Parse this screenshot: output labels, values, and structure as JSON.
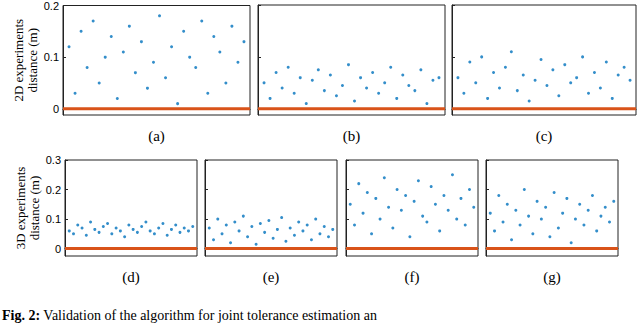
{
  "caption": {
    "label": "Fig. 2:",
    "text": "Validation of the algorithm for joint tolerance estimation an"
  },
  "chart_data": [
    {
      "type": "scatter",
      "title": "(a)",
      "y_label": "2D experiments\ndistance (m)",
      "xlim": [
        0,
        31
      ],
      "ylim": [
        -0.012,
        0.2
      ],
      "yticks": [
        0,
        0.1,
        0.2
      ],
      "tick_labels": "y",
      "grid": false,
      "series": [
        {
          "type": "scatter",
          "color": "#0072bd",
          "marker": "circle",
          "x": [
            1,
            2,
            3,
            4,
            5,
            6,
            7,
            8,
            9,
            10,
            11,
            12,
            13,
            14,
            15,
            16,
            17,
            18,
            19,
            20,
            21,
            22,
            23,
            24,
            25,
            26,
            27,
            28,
            29,
            30
          ],
          "values": [
            0.12,
            0.03,
            0.15,
            0.08,
            0.17,
            0.05,
            0.1,
            0.14,
            0.02,
            0.11,
            0.16,
            0.07,
            0.13,
            0.04,
            0.09,
            0.18,
            0.06,
            0.12,
            0.01,
            0.15,
            0.1,
            0.08,
            0.17,
            0.03,
            0.14,
            0.11,
            0.05,
            0.16,
            0.09,
            0.13
          ]
        },
        {
          "type": "line",
          "color": "#d95319",
          "line_style": "solid",
          "x": [
            0,
            31
          ],
          "values": [
            0,
            0
          ]
        }
      ]
    },
    {
      "type": "scatter",
      "title": "(b)",
      "xlim": [
        0,
        31
      ],
      "ylim": [
        -0.012,
        0.2
      ],
      "yticks": [
        0,
        0.1,
        0.2
      ],
      "tick_labels": false,
      "grid": false,
      "series": [
        {
          "type": "scatter",
          "color": "#0072bd",
          "marker": "circle",
          "x": [
            1,
            2,
            3,
            4,
            5,
            6,
            7,
            8,
            9,
            10,
            11,
            12,
            13,
            14,
            15,
            16,
            17,
            18,
            19,
            20,
            21,
            22,
            23,
            24,
            25,
            26,
            27,
            28,
            29,
            30
          ],
          "values": [
            0.05,
            0.02,
            0.07,
            0.04,
            0.08,
            0.03,
            0.06,
            0.01,
            0.055,
            0.075,
            0.035,
            0.065,
            0.025,
            0.045,
            0.085,
            0.015,
            0.06,
            0.04,
            0.07,
            0.03,
            0.05,
            0.08,
            0.02,
            0.065,
            0.045,
            0.035,
            0.075,
            0.01,
            0.055,
            0.06
          ]
        },
        {
          "type": "line",
          "color": "#d95319",
          "line_style": "solid",
          "x": [
            0,
            31
          ],
          "values": [
            0,
            0
          ]
        }
      ]
    },
    {
      "type": "scatter",
      "title": "(c)",
      "xlim": [
        0,
        31
      ],
      "ylim": [
        -0.012,
        0.2
      ],
      "yticks": [
        0,
        0.1,
        0.2
      ],
      "tick_labels": false,
      "grid": false,
      "series": [
        {
          "type": "scatter",
          "color": "#0072bd",
          "marker": "circle",
          "x": [
            1,
            2,
            3,
            4,
            5,
            6,
            7,
            8,
            9,
            10,
            11,
            12,
            13,
            14,
            15,
            16,
            17,
            18,
            19,
            20,
            21,
            22,
            23,
            24,
            25,
            26,
            27,
            28,
            29,
            30
          ],
          "values": [
            0.06,
            0.03,
            0.09,
            0.05,
            0.1,
            0.02,
            0.07,
            0.04,
            0.08,
            0.11,
            0.035,
            0.065,
            0.015,
            0.055,
            0.095,
            0.045,
            0.075,
            0.025,
            0.085,
            0.05,
            0.06,
            0.1,
            0.03,
            0.07,
            0.04,
            0.09,
            0.02,
            0.065,
            0.08,
            0.055
          ]
        },
        {
          "type": "line",
          "color": "#d95319",
          "line_style": "solid",
          "x": [
            0,
            31
          ],
          "values": [
            0,
            0
          ]
        }
      ]
    },
    {
      "type": "scatter",
      "title": "(d)",
      "y_label": "3D experiments\ndistance (m)",
      "xlim": [
        0,
        31
      ],
      "ylim": [
        -0.025,
        0.3
      ],
      "yticks": [
        0,
        0.1,
        0.2,
        0.3
      ],
      "tick_labels": "y",
      "grid": false,
      "series": [
        {
          "type": "scatter",
          "color": "#0072bd",
          "marker": "circle",
          "x": [
            1,
            2,
            3,
            4,
            5,
            6,
            7,
            8,
            9,
            10,
            11,
            12,
            13,
            14,
            15,
            16,
            17,
            18,
            19,
            20,
            21,
            22,
            23,
            24,
            25,
            26,
            27,
            28,
            29,
            30
          ],
          "values": [
            0.06,
            0.05,
            0.08,
            0.07,
            0.045,
            0.09,
            0.065,
            0.055,
            0.075,
            0.085,
            0.05,
            0.07,
            0.06,
            0.04,
            0.08,
            0.065,
            0.055,
            0.075,
            0.09,
            0.06,
            0.05,
            0.07,
            0.085,
            0.045,
            0.065,
            0.08,
            0.055,
            0.07,
            0.06,
            0.075
          ]
        },
        {
          "type": "line",
          "color": "#d95319",
          "line_style": "solid",
          "x": [
            0,
            31
          ],
          "values": [
            0,
            0
          ]
        }
      ]
    },
    {
      "type": "scatter",
      "title": "(e)",
      "xlim": [
        0,
        31
      ],
      "ylim": [
        -0.025,
        0.3
      ],
      "yticks": [
        0,
        0.1,
        0.2,
        0.3
      ],
      "tick_labels": false,
      "grid": false,
      "series": [
        {
          "type": "scatter",
          "color": "#0072bd",
          "marker": "circle",
          "x": [
            1,
            2,
            3,
            4,
            5,
            6,
            7,
            8,
            9,
            10,
            11,
            12,
            13,
            14,
            15,
            16,
            17,
            18,
            19,
            20,
            21,
            22,
            23,
            24,
            25,
            26,
            27,
            28,
            29,
            30
          ],
          "values": [
            0.07,
            0.03,
            0.1,
            0.05,
            0.08,
            0.02,
            0.09,
            0.06,
            0.11,
            0.04,
            0.075,
            0.015,
            0.085,
            0.055,
            0.095,
            0.035,
            0.065,
            0.105,
            0.025,
            0.07,
            0.045,
            0.09,
            0.06,
            0.08,
            0.03,
            0.1,
            0.05,
            0.075,
            0.04,
            0.065
          ]
        },
        {
          "type": "line",
          "color": "#d95319",
          "line_style": "solid",
          "x": [
            0,
            31
          ],
          "values": [
            0,
            0
          ]
        }
      ]
    },
    {
      "type": "scatter",
      "title": "(f)",
      "xlim": [
        0,
        31
      ],
      "ylim": [
        -0.025,
        0.3
      ],
      "yticks": [
        0,
        0.1,
        0.2,
        0.3
      ],
      "tick_labels": false,
      "grid": false,
      "series": [
        {
          "type": "scatter",
          "color": "#0072bd",
          "marker": "circle",
          "x": [
            1,
            2,
            3,
            4,
            5,
            6,
            7,
            8,
            9,
            10,
            11,
            12,
            13,
            14,
            15,
            16,
            17,
            18,
            19,
            20,
            21,
            22,
            23,
            24,
            25,
            26,
            27,
            28,
            29,
            30
          ],
          "values": [
            0.15,
            0.08,
            0.22,
            0.12,
            0.19,
            0.05,
            0.17,
            0.1,
            0.24,
            0.14,
            0.07,
            0.2,
            0.13,
            0.18,
            0.04,
            0.16,
            0.23,
            0.11,
            0.09,
            0.21,
            0.15,
            0.06,
            0.18,
            0.13,
            0.25,
            0.1,
            0.17,
            0.08,
            0.2,
            0.14
          ]
        },
        {
          "type": "line",
          "color": "#d95319",
          "line_style": "solid",
          "x": [
            0,
            31
          ],
          "values": [
            0,
            0
          ]
        }
      ]
    },
    {
      "type": "scatter",
      "title": "(g)",
      "xlim": [
        0,
        31
      ],
      "ylim": [
        -0.025,
        0.3
      ],
      "yticks": [
        0,
        0.1,
        0.2,
        0.3
      ],
      "tick_labels": false,
      "grid": false,
      "series": [
        {
          "type": "scatter",
          "color": "#0072bd",
          "marker": "circle",
          "x": [
            1,
            2,
            3,
            4,
            5,
            6,
            7,
            8,
            9,
            10,
            11,
            12,
            13,
            14,
            15,
            16,
            17,
            18,
            19,
            20,
            21,
            22,
            23,
            24,
            25,
            26,
            27,
            28,
            29,
            30
          ],
          "values": [
            0.12,
            0.06,
            0.18,
            0.09,
            0.15,
            0.03,
            0.13,
            0.08,
            0.2,
            0.11,
            0.05,
            0.16,
            0.1,
            0.14,
            0.04,
            0.19,
            0.07,
            0.12,
            0.17,
            0.02,
            0.1,
            0.15,
            0.08,
            0.13,
            0.18,
            0.06,
            0.11,
            0.14,
            0.09,
            0.16
          ]
        },
        {
          "type": "line",
          "color": "#d95319",
          "line_style": "solid",
          "x": [
            0,
            31
          ],
          "values": [
            0,
            0
          ]
        }
      ]
    }
  ]
}
